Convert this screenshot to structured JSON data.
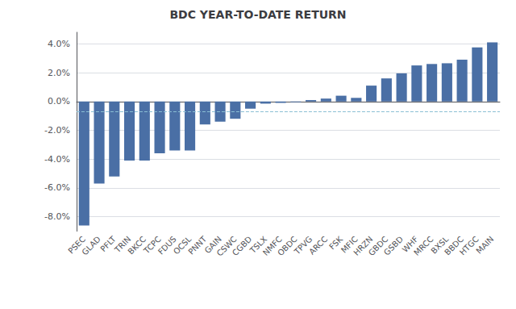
{
  "chart_data": {
    "type": "bar",
    "title": "BDC YEAR-TO-DATE RETURN",
    "categories": [
      "PSEC",
      "GLAD",
      "PFLT",
      "TRIN",
      "BKCC",
      "TCPC",
      "FDUS",
      "OCSL",
      "PNNT",
      "GAIN",
      "CSWC",
      "CGBD",
      "TSLX",
      "NMFC",
      "OBDC",
      "TPVG",
      "ARCC",
      "FSK",
      "MFIC",
      "HRZN",
      "GBDC",
      "GSBD",
      "WHF",
      "MRCC",
      "BXSL",
      "BBDC",
      "HTGC",
      "MAIN"
    ],
    "values": [
      -8.6,
      -5.7,
      -5.2,
      -4.1,
      -4.1,
      -3.6,
      -3.4,
      -3.4,
      -1.6,
      -1.4,
      -1.2,
      -0.5,
      -0.15,
      -0.1,
      -0.05,
      0.1,
      0.2,
      0.4,
      0.25,
      1.1,
      1.6,
      1.95,
      2.5,
      2.6,
      2.65,
      2.9,
      3.75,
      4.1
    ],
    "color": "#4a6fa5",
    "hline": {
      "value": -0.7,
      "color": "#8bbfd4"
    },
    "ylim": [
      -9.0,
      4.8
    ],
    "yticks": [
      {
        "value": -8.0,
        "label": "-8.0%"
      },
      {
        "value": -6.0,
        "label": "-6.0%"
      },
      {
        "value": -4.0,
        "label": "-4.0%"
      },
      {
        "value": -2.0,
        "label": "-2.0%"
      },
      {
        "value": 0.0,
        "label": "0.0%"
      },
      {
        "value": 2.0,
        "label": "2.0%"
      },
      {
        "value": 4.0,
        "label": "4.0%"
      }
    ],
    "grid": true
  }
}
